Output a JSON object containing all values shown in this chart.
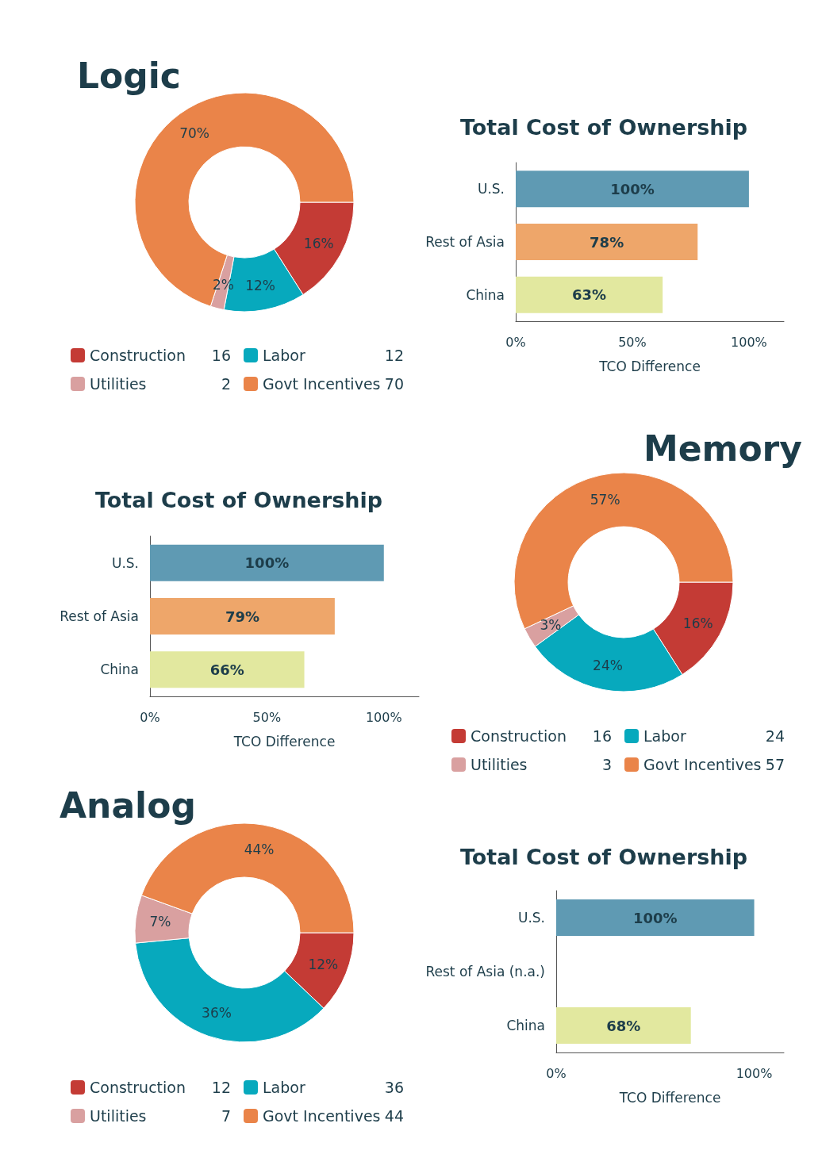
{
  "chart_data": [
    {
      "type": "donut",
      "title": "Logic",
      "categories": [
        "Construction",
        "Labor",
        "Utilities",
        "Govt Incentives"
      ],
      "values": [
        16,
        12,
        2,
        70
      ],
      "annotations": [
        "16",
        "12",
        "2",
        "70"
      ],
      "value_labels": [
        "16%",
        "12%",
        "2%",
        "70%"
      ],
      "colors": [
        "#c43b35",
        "#07a9bd",
        "#d9a0a0",
        "#ea8449"
      ],
      "legend": "bottom"
    },
    {
      "type": "bar",
      "orientation": "horizontal",
      "title": "Total Cost of Ownership",
      "xlabel": "TCO Difference",
      "categories": [
        "U.S.",
        "Rest of Asia",
        "China"
      ],
      "values": [
        100,
        78,
        63
      ],
      "value_labels": [
        "100%",
        "78%",
        "63%"
      ],
      "colors": [
        "#5f9ab3",
        "#eea66a",
        "#e2e89f"
      ],
      "xlim": [
        0,
        115
      ],
      "xticks": [
        {
          "value": 0,
          "label": "0%"
        },
        {
          "value": 50,
          "label": "50%"
        },
        {
          "value": 100,
          "label": "100%"
        }
      ],
      "grid": false,
      "legend": false
    },
    {
      "type": "bar",
      "orientation": "horizontal",
      "title": "Total Cost of Ownership",
      "xlabel": "TCO Difference",
      "categories": [
        "U.S.",
        "Rest of Asia",
        "China"
      ],
      "values": [
        100,
        79,
        66
      ],
      "value_labels": [
        "100%",
        "79%",
        "66%"
      ],
      "colors": [
        "#5f9ab3",
        "#eea66a",
        "#e2e89f"
      ],
      "xlim": [
        0,
        115
      ],
      "xticks": [
        {
          "value": 0,
          "label": "0%"
        },
        {
          "value": 50,
          "label": "50%"
        },
        {
          "value": 100,
          "label": "100%"
        }
      ],
      "grid": false,
      "legend": false
    },
    {
      "type": "donut",
      "title": "Memory",
      "categories": [
        "Construction",
        "Labor",
        "Utilities",
        "Govt Incentives"
      ],
      "values": [
        16,
        24,
        3,
        57
      ],
      "annotations": [
        "16",
        "24",
        "3",
        "57"
      ],
      "value_labels": [
        "16%",
        "24%",
        "3%",
        "57%"
      ],
      "colors": [
        "#c43b35",
        "#07a9bd",
        "#d9a0a0",
        "#ea8449"
      ],
      "legend": "bottom"
    },
    {
      "type": "donut",
      "title": "Analog",
      "categories": [
        "Construction",
        "Labor",
        "Utilities",
        "Govt Incentives"
      ],
      "values": [
        12,
        36,
        7,
        44
      ],
      "annotations": [
        "12",
        "36",
        "7",
        "44"
      ],
      "value_labels": [
        "12%",
        "36%",
        "7%",
        "44%"
      ],
      "colors": [
        "#c43b35",
        "#07a9bd",
        "#d9a0a0",
        "#ea8449"
      ],
      "legend": "bottom"
    },
    {
      "type": "bar",
      "orientation": "horizontal",
      "title": "Total Cost of Ownership",
      "xlabel": "TCO Difference",
      "categories": [
        "U.S.",
        "Rest of Asia (n.a.)",
        "China"
      ],
      "values": [
        100,
        null,
        68
      ],
      "value_labels": [
        "100%",
        null,
        "68%"
      ],
      "colors": [
        "#5f9ab3",
        "#eea66a",
        "#e2e89f"
      ],
      "xlim": [
        0,
        115
      ],
      "xticks": [
        {
          "value": 0,
          "label": "0%"
        },
        {
          "value": 100,
          "label": "100%"
        }
      ],
      "grid": false,
      "legend": false
    }
  ]
}
